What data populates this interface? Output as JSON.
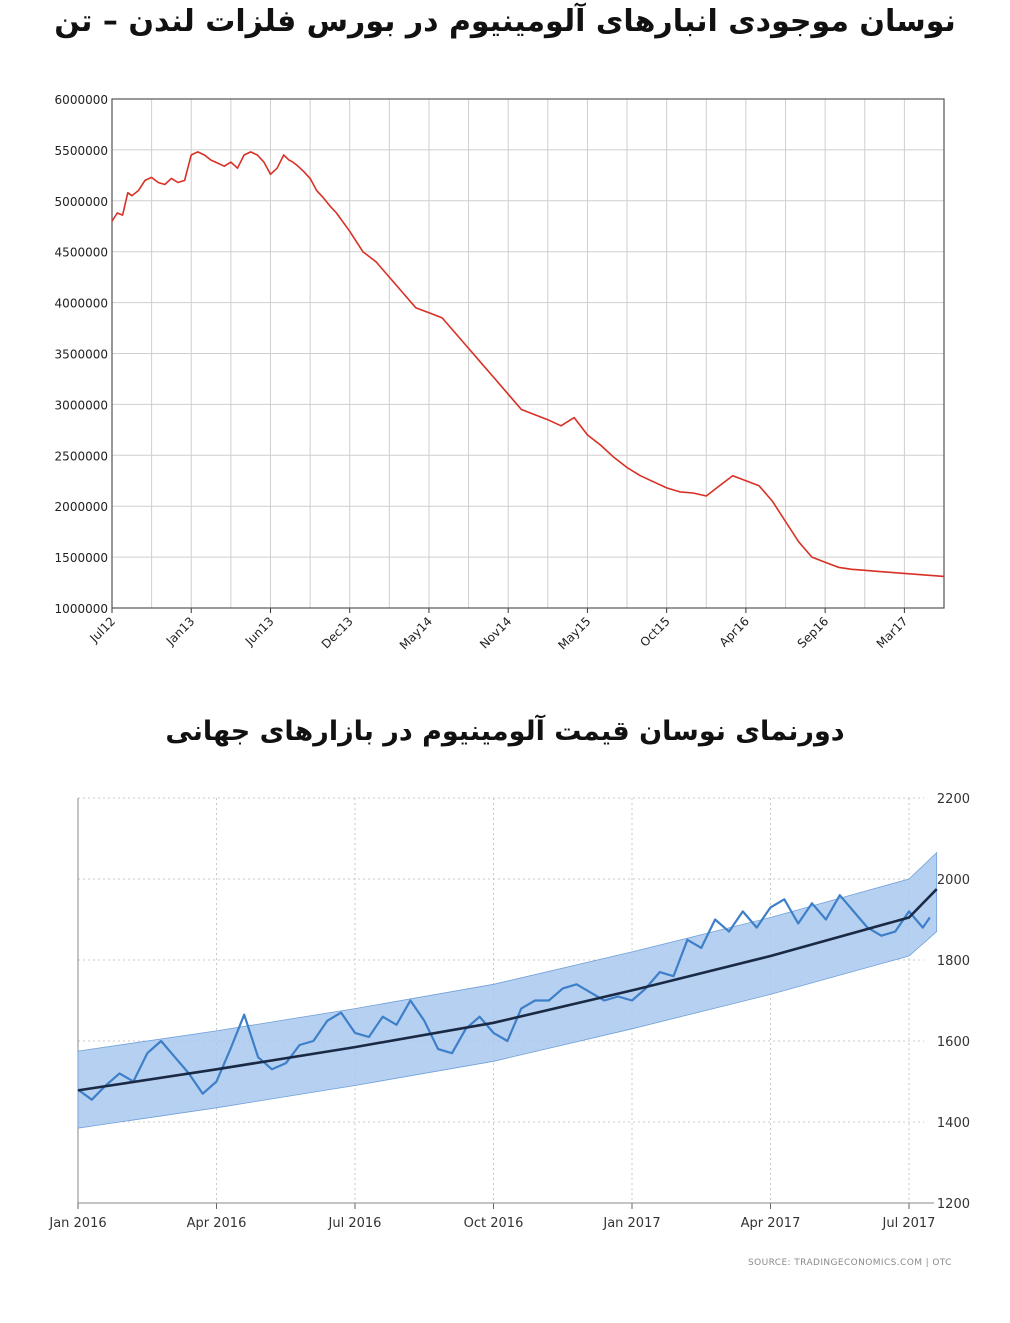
{
  "chart_data": [
    {
      "type": "line",
      "title": "نوسان موجودی انبارهای آلومینیوم در بورس فلزات لندن – تن",
      "xlabel": "",
      "ylabel": "",
      "ylim": [
        1000000,
        6000000
      ],
      "yticks": [
        "1000000",
        "1500000",
        "2000000",
        "2500000",
        "3000000",
        "3500000",
        "4000000",
        "4500000",
        "5000000",
        "5500000",
        "6000000"
      ],
      "xtick_labels": [
        "Jul12",
        "Jan13",
        "Jun13",
        "Dec13",
        "May14",
        "Nov14",
        "May15",
        "Oct15",
        "Apr16",
        "Sep16",
        "Mar17"
      ],
      "grid": true,
      "series": [
        {
          "color": "#d93025",
          "x": [
            0,
            0.4,
            0.8,
            1.2,
            1.5,
            2.0,
            2.5,
            3.0,
            3.5,
            4.0,
            4.5,
            5.0,
            5.5,
            6.0,
            6.5,
            7.0,
            7.5,
            8.0,
            8.5,
            9.0,
            9.5,
            10.0,
            10.5,
            11.0,
            11.5,
            12.0,
            12.5,
            13.0,
            13.4,
            13.7,
            14.0,
            14.5,
            15.0,
            15.5,
            16.0,
            16.5,
            17.0,
            18.0,
            19.0,
            20.0,
            21.0,
            22.0,
            23.0,
            24.0,
            25.0,
            26.0,
            27.0,
            28.0,
            29.0,
            30.0,
            31.0,
            32.0,
            33.0,
            34.0,
            35.0,
            36.0,
            37.0,
            38.0,
            39.0,
            40.0,
            41.0,
            42.0,
            43.0,
            44.0,
            45.0,
            46.0,
            47.0,
            48.0,
            49.0,
            50.0,
            51.0,
            52.0,
            53.0,
            54.0,
            55.0,
            56.0,
            57.0,
            58.0,
            59.0,
            60.0,
            61.0,
            62.0,
            63.0
          ],
          "values": [
            4800000,
            4880000,
            4860000,
            5080000,
            5050000,
            5100000,
            5200000,
            5230000,
            5180000,
            5160000,
            5220000,
            5180000,
            5200000,
            5450000,
            5480000,
            5450000,
            5400000,
            5370000,
            5340000,
            5380000,
            5320000,
            5450000,
            5480000,
            5450000,
            5380000,
            5260000,
            5320000,
            5450000,
            5400000,
            5380000,
            5350000,
            5290000,
            5220000,
            5100000,
            5030000,
            4950000,
            4880000,
            4700000,
            4500000,
            4400000,
            4250000,
            4100000,
            3950000,
            3900000,
            3850000,
            3700000,
            3550000,
            3400000,
            3250000,
            3100000,
            2950000,
            2900000,
            2850000,
            2790000,
            2870000,
            2700000,
            2600000,
            2480000,
            2380000,
            2300000,
            2240000,
            2180000,
            2140000,
            2130000,
            2100000,
            2200000,
            2300000,
            2250000,
            2200000,
            2050000,
            1850000,
            1650000,
            1500000,
            1450000,
            1400000,
            1380000,
            1370000,
            1360000,
            1350000,
            1340000,
            1330000,
            1320000,
            1310000
          ]
        }
      ]
    },
    {
      "type": "line",
      "title": "دورنمای نوسان قیمت آلومینیوم در بازارهای جهانی",
      "xlabel": "",
      "ylabel": "",
      "ylim": [
        1200,
        2200
      ],
      "yticks": [
        "1200",
        "1400",
        "1600",
        "1800",
        "2000",
        "2200"
      ],
      "xtick_labels": [
        "Jan 2016",
        "Apr 2016",
        "Jul 2016",
        "Oct 2016",
        "Jan 2017",
        "Apr 2017",
        "Jul 2017"
      ],
      "grid": true,
      "band": {
        "x": [
          0,
          1,
          2,
          3,
          4,
          5,
          6,
          6.2
        ],
        "upper": [
          1575,
          1625,
          1680,
          1740,
          1820,
          1905,
          2000,
          2065
        ],
        "lower": [
          1385,
          1435,
          1490,
          1550,
          1630,
          1715,
          1810,
          1870
        ]
      },
      "trend": {
        "x": [
          0,
          1,
          2,
          3,
          4,
          5,
          6,
          6.2
        ],
        "values": [
          1478,
          1530,
          1585,
          1645,
          1725,
          1810,
          1905,
          1975
        ]
      },
      "series": [
        {
          "color": "#3d7fc9",
          "x": [
            0,
            0.1,
            0.2,
            0.3,
            0.4,
            0.5,
            0.6,
            0.7,
            0.8,
            0.9,
            1.0,
            1.1,
            1.2,
            1.3,
            1.4,
            1.5,
            1.6,
            1.7,
            1.8,
            1.9,
            2.0,
            2.1,
            2.2,
            2.3,
            2.4,
            2.5,
            2.6,
            2.7,
            2.8,
            2.9,
            3.0,
            3.1,
            3.2,
            3.3,
            3.4,
            3.5,
            3.6,
            3.7,
            3.8,
            3.9,
            4.0,
            4.1,
            4.2,
            4.3,
            4.4,
            4.5,
            4.6,
            4.7,
            4.8,
            4.9,
            5.0,
            5.1,
            5.2,
            5.3,
            5.4,
            5.5,
            5.6,
            5.7,
            5.8,
            5.9,
            6.0,
            6.1,
            6.15
          ],
          "values": [
            1480,
            1455,
            1490,
            1520,
            1500,
            1570,
            1600,
            1560,
            1520,
            1470,
            1500,
            1580,
            1665,
            1560,
            1530,
            1545,
            1590,
            1600,
            1650,
            1670,
            1620,
            1610,
            1660,
            1640,
            1700,
            1650,
            1580,
            1570,
            1630,
            1660,
            1620,
            1600,
            1680,
            1700,
            1700,
            1730,
            1740,
            1720,
            1700,
            1710,
            1700,
            1730,
            1770,
            1760,
            1850,
            1830,
            1900,
            1870,
            1920,
            1880,
            1930,
            1950,
            1890,
            1940,
            1900,
            1960,
            1920,
            1880,
            1860,
            1870,
            1920,
            1880,
            1905
          ]
        }
      ]
    }
  ],
  "source": "SOURCE: TRADINGECONOMICS.COM | OTC",
  "colors": {
    "line1": "#d93025",
    "line2": "#3d7fc9",
    "trend": "#1a2a44",
    "band": "#a9c8ee"
  }
}
